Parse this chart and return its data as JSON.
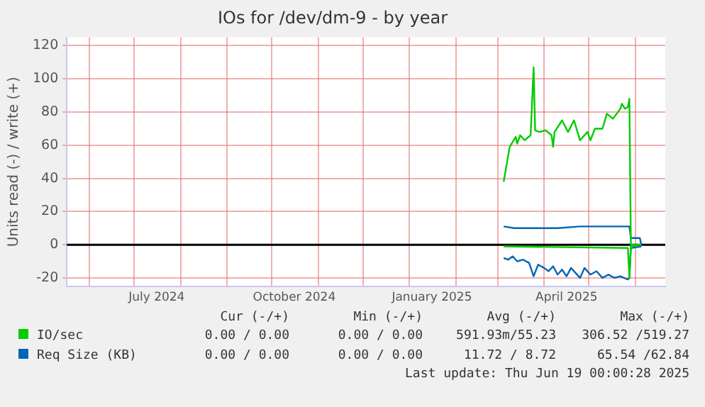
{
  "chart_data": {
    "type": "line",
    "title": "IOs for /dev/dm-9 - by year",
    "ylabel": "Units read (-) / write (+)",
    "xlim": [
      "2024-05-17",
      "2025-06-21"
    ],
    "xticks": [
      {
        "value": "2024-06-01",
        "label": null
      },
      {
        "value": "2024-07-01",
        "label": null
      },
      {
        "value": "2024-07-16",
        "label": "July 2024"
      },
      {
        "value": "2024-08-01",
        "label": null
      },
      {
        "value": "2024-09-01",
        "label": null
      },
      {
        "value": "2024-10-01",
        "label": null
      },
      {
        "value": "2024-10-16",
        "label": "October 2024"
      },
      {
        "value": "2024-11-01",
        "label": null
      },
      {
        "value": "2024-12-01",
        "label": null
      },
      {
        "value": "2025-01-01",
        "label": null
      },
      {
        "value": "2025-01-16",
        "label": "January 2025"
      },
      {
        "value": "2025-02-01",
        "label": null
      },
      {
        "value": "2025-03-01",
        "label": null
      },
      {
        "value": "2025-04-01",
        "label": null
      },
      {
        "value": "2025-04-16",
        "label": "April 2025"
      },
      {
        "value": "2025-05-01",
        "label": null
      },
      {
        "value": "2025-06-01",
        "label": null
      }
    ],
    "ylim": [
      -25,
      125
    ],
    "yticks": [
      -20,
      0,
      20,
      40,
      60,
      80,
      100,
      120
    ],
    "grid": true,
    "legend": "bottom",
    "marker": "none",
    "line_style": "solid",
    "ref_lines": [
      {
        "axis": "y",
        "value": 0,
        "color": "#000000"
      }
    ],
    "annotations": [
      "Cur (-/+)",
      "Min (-/+)",
      "Avg (-/+)",
      "Max (-/+)",
      "0.00 / 0.00",
      "0.00 / 0.00",
      "591.93m/55.23",
      "306.52 /519.27",
      "0.00 / 0.00",
      "0.00 / 0.00",
      "11.72 / 8.72",
      "65.54 /62.84",
      "Last update: Thu Jun 19 00:00:28 2025"
    ],
    "series": [
      {
        "name": "IO/sec",
        "color": "#00cc00",
        "x": [
          "2025-03-05",
          "2025-03-09",
          "2025-03-11",
          "2025-03-13",
          "2025-03-14",
          "2025-03-16",
          "2025-03-19",
          "2025-03-23",
          "2025-03-25",
          "2025-03-26",
          "2025-03-29",
          "2025-04-02",
          "2025-04-06",
          "2025-04-07",
          "2025-04-08",
          "2025-04-13",
          "2025-04-17",
          "2025-04-21",
          "2025-04-25",
          "2025-04-30",
          "2025-05-02",
          "2025-05-05",
          "2025-05-10",
          "2025-05-13",
          "2025-05-17",
          "2025-05-22",
          "2025-05-23",
          "2025-05-25",
          "2025-05-27",
          "2025-05-28",
          "2025-05-29",
          "2025-06-05"
        ],
        "values": [
          38,
          59,
          62,
          65,
          61,
          66,
          63,
          66,
          107,
          69,
          68,
          69,
          66,
          59,
          68,
          75,
          68,
          75,
          63,
          68,
          63,
          70,
          70,
          79,
          76,
          82,
          85,
          82,
          83,
          88,
          0,
          0
        ]
      },
      {
        "color": "#00cc00",
        "x": [
          "2025-03-05",
          "2025-05-27",
          "2025-05-28",
          "2025-05-29",
          "2025-06-05"
        ],
        "values": [
          -1,
          -2,
          -20,
          -1,
          0
        ]
      },
      {
        "name": "Req Size (KB)",
        "color": "#0066b3",
        "x": [
          "2025-03-05",
          "2025-03-12",
          "2025-03-25",
          "2025-04-10",
          "2025-04-25",
          "2025-05-05",
          "2025-05-28",
          "2025-05-29",
          "2025-06-04",
          "2025-06-05"
        ],
        "values": [
          11,
          10,
          10,
          10,
          11,
          11,
          11,
          4,
          4,
          0
        ]
      },
      {
        "color": "#0066b3",
        "x": [
          "2025-03-05",
          "2025-03-08",
          "2025-03-11",
          "2025-03-14",
          "2025-03-18",
          "2025-03-22",
          "2025-03-25",
          "2025-03-28",
          "2025-04-01",
          "2025-04-04",
          "2025-04-07",
          "2025-04-10",
          "2025-04-13",
          "2025-04-16",
          "2025-04-19",
          "2025-04-22",
          "2025-04-25",
          "2025-04-28",
          "2025-05-02",
          "2025-05-06",
          "2025-05-10",
          "2025-05-14",
          "2025-05-18",
          "2025-05-22",
          "2025-05-27",
          "2025-05-28",
          "2025-05-29",
          "2025-06-05"
        ],
        "values": [
          -8,
          -9,
          -7,
          -10,
          -9,
          -11,
          -19,
          -12,
          -14,
          -16,
          -13,
          -18,
          -15,
          -19,
          -14,
          -17,
          -20,
          -14,
          -18,
          -16,
          -20,
          -18,
          -20,
          -19,
          -21,
          -20,
          -2,
          -1
        ]
      }
    ]
  }
}
